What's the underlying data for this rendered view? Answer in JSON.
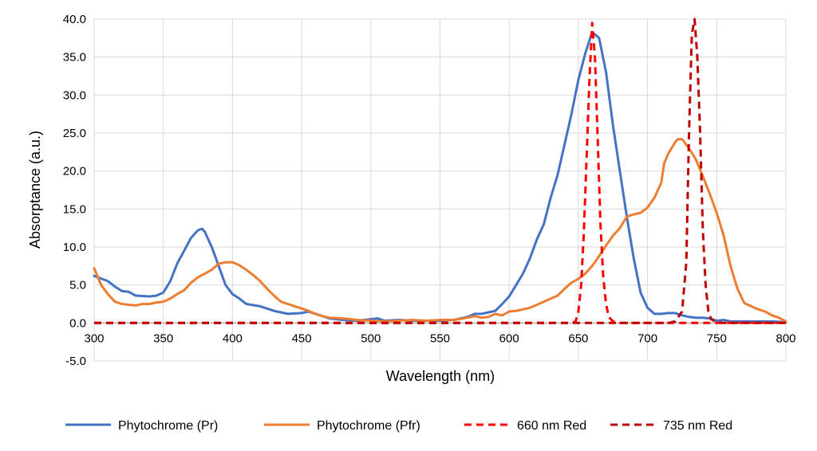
{
  "chart_data": {
    "type": "line",
    "xlabel": "Wavelength (nm)",
    "ylabel": "Absorptance (a.u.)",
    "xlim": [
      300,
      800
    ],
    "ylim": [
      -5,
      40
    ],
    "x_ticks": [
      "300",
      "350",
      "400",
      "450",
      "500",
      "550",
      "600",
      "650",
      "700",
      "750",
      "800"
    ],
    "y_ticks": [
      "-5.0",
      "0.0",
      "5.0",
      "10.0",
      "15.0",
      "20.0",
      "25.0",
      "30.0",
      "35.0",
      "40.0"
    ],
    "grid": true,
    "legend_position": "bottom",
    "series": [
      {
        "name": "Phytochrome (Pr)",
        "color": "#4472C4",
        "style": "solid",
        "points": [
          [
            300,
            6.2
          ],
          [
            310,
            5.5
          ],
          [
            315,
            4.8
          ],
          [
            320,
            4.2
          ],
          [
            325,
            4.1
          ],
          [
            330,
            3.6
          ],
          [
            340,
            3.5
          ],
          [
            345,
            3.6
          ],
          [
            350,
            4.0
          ],
          [
            355,
            5.5
          ],
          [
            360,
            7.8
          ],
          [
            365,
            9.5
          ],
          [
            370,
            11.2
          ],
          [
            375,
            12.2
          ],
          [
            378,
            12.4
          ],
          [
            380,
            12.0
          ],
          [
            385,
            10.0
          ],
          [
            390,
            7.5
          ],
          [
            395,
            5.0
          ],
          [
            400,
            3.8
          ],
          [
            405,
            3.2
          ],
          [
            410,
            2.5
          ],
          [
            420,
            2.2
          ],
          [
            430,
            1.6
          ],
          [
            440,
            1.2
          ],
          [
            450,
            1.3
          ],
          [
            455,
            1.5
          ],
          [
            460,
            1.2
          ],
          [
            470,
            0.6
          ],
          [
            480,
            0.4
          ],
          [
            490,
            0.3
          ],
          [
            500,
            0.5
          ],
          [
            505,
            0.6
          ],
          [
            510,
            0.3
          ],
          [
            520,
            0.4
          ],
          [
            530,
            0.3
          ],
          [
            540,
            0.3
          ],
          [
            550,
            0.3
          ],
          [
            560,
            0.4
          ],
          [
            570,
            0.8
          ],
          [
            575,
            1.2
          ],
          [
            580,
            1.2
          ],
          [
            590,
            1.6
          ],
          [
            595,
            2.5
          ],
          [
            600,
            3.5
          ],
          [
            605,
            5.0
          ],
          [
            610,
            6.5
          ],
          [
            615,
            8.5
          ],
          [
            620,
            11.0
          ],
          [
            625,
            13.0
          ],
          [
            630,
            16.5
          ],
          [
            635,
            19.5
          ],
          [
            640,
            23.5
          ],
          [
            645,
            27.5
          ],
          [
            650,
            32.0
          ],
          [
            655,
            35.5
          ],
          [
            660,
            38.3
          ],
          [
            665,
            37.5
          ],
          [
            670,
            33.0
          ],
          [
            675,
            26.0
          ],
          [
            680,
            20.0
          ],
          [
            685,
            14.0
          ],
          [
            690,
            8.5
          ],
          [
            695,
            4.0
          ],
          [
            700,
            2.0
          ],
          [
            705,
            1.2
          ],
          [
            710,
            1.2
          ],
          [
            715,
            1.3
          ],
          [
            720,
            1.3
          ],
          [
            725,
            1.0
          ],
          [
            730,
            0.8
          ],
          [
            735,
            0.7
          ],
          [
            740,
            0.7
          ],
          [
            745,
            0.6
          ],
          [
            750,
            0.3
          ],
          [
            755,
            0.4
          ],
          [
            760,
            0.2
          ],
          [
            770,
            0.2
          ],
          [
            780,
            0.2
          ],
          [
            790,
            0.2
          ],
          [
            800,
            0.1
          ]
        ]
      },
      {
        "name": "Phytochrome (Pfr)",
        "color": "#ED7D31",
        "style": "solid",
        "points": [
          [
            300,
            7.2
          ],
          [
            305,
            5.0
          ],
          [
            310,
            3.8
          ],
          [
            315,
            2.8
          ],
          [
            320,
            2.5
          ],
          [
            325,
            2.4
          ],
          [
            330,
            2.3
          ],
          [
            335,
            2.5
          ],
          [
            340,
            2.5
          ],
          [
            345,
            2.7
          ],
          [
            350,
            2.8
          ],
          [
            355,
            3.2
          ],
          [
            360,
            3.8
          ],
          [
            365,
            4.3
          ],
          [
            370,
            5.3
          ],
          [
            375,
            6.0
          ],
          [
            380,
            6.5
          ],
          [
            385,
            7.0
          ],
          [
            390,
            7.8
          ],
          [
            395,
            8.0
          ],
          [
            400,
            8.0
          ],
          [
            405,
            7.6
          ],
          [
            410,
            7.0
          ],
          [
            415,
            6.3
          ],
          [
            420,
            5.5
          ],
          [
            425,
            4.5
          ],
          [
            430,
            3.6
          ],
          [
            435,
            2.8
          ],
          [
            440,
            2.5
          ],
          [
            445,
            2.2
          ],
          [
            450,
            1.9
          ],
          [
            455,
            1.6
          ],
          [
            460,
            1.2
          ],
          [
            465,
            0.9
          ],
          [
            470,
            0.7
          ],
          [
            480,
            0.6
          ],
          [
            490,
            0.4
          ],
          [
            500,
            0.3
          ],
          [
            510,
            0.2
          ],
          [
            520,
            0.3
          ],
          [
            530,
            0.4
          ],
          [
            540,
            0.3
          ],
          [
            550,
            0.4
          ],
          [
            560,
            0.4
          ],
          [
            570,
            0.7
          ],
          [
            575,
            0.9
          ],
          [
            580,
            0.7
          ],
          [
            585,
            0.8
          ],
          [
            590,
            1.2
          ],
          [
            595,
            1.0
          ],
          [
            600,
            1.5
          ],
          [
            605,
            1.6
          ],
          [
            610,
            1.8
          ],
          [
            615,
            2.0
          ],
          [
            620,
            2.4
          ],
          [
            625,
            2.8
          ],
          [
            630,
            3.2
          ],
          [
            635,
            3.6
          ],
          [
            640,
            4.5
          ],
          [
            645,
            5.3
          ],
          [
            650,
            5.8
          ],
          [
            655,
            6.5
          ],
          [
            660,
            7.5
          ],
          [
            665,
            8.8
          ],
          [
            670,
            10.2
          ],
          [
            675,
            11.5
          ],
          [
            680,
            12.5
          ],
          [
            685,
            14.0
          ],
          [
            690,
            14.3
          ],
          [
            695,
            14.5
          ],
          [
            700,
            15.2
          ],
          [
            705,
            16.5
          ],
          [
            710,
            18.5
          ],
          [
            712,
            21.0
          ],
          [
            715,
            22.3
          ],
          [
            720,
            23.8
          ],
          [
            722,
            24.2
          ],
          [
            725,
            24.2
          ],
          [
            730,
            23.0
          ],
          [
            735,
            21.5
          ],
          [
            740,
            19.3
          ],
          [
            745,
            17.0
          ],
          [
            750,
            14.5
          ],
          [
            755,
            11.5
          ],
          [
            760,
            7.5
          ],
          [
            765,
            4.5
          ],
          [
            770,
            2.6
          ],
          [
            775,
            2.2
          ],
          [
            780,
            1.8
          ],
          [
            785,
            1.5
          ],
          [
            790,
            1.0
          ],
          [
            795,
            0.7
          ],
          [
            800,
            0.2
          ]
        ]
      },
      {
        "name": "660 nm Red",
        "color": "#FF0000",
        "style": "dashed",
        "points": [
          [
            300,
            0
          ],
          [
            645,
            0
          ],
          [
            648,
            0.2
          ],
          [
            650,
            1.5
          ],
          [
            652,
            5
          ],
          [
            654,
            12
          ],
          [
            656,
            22
          ],
          [
            658,
            32
          ],
          [
            660,
            39.5
          ],
          [
            662,
            35
          ],
          [
            664,
            24
          ],
          [
            666,
            13
          ],
          [
            668,
            6
          ],
          [
            670,
            2.5
          ],
          [
            672,
            0.8
          ],
          [
            675,
            0.2
          ],
          [
            680,
            0
          ],
          [
            800,
            0
          ]
        ]
      },
      {
        "name": "735 nm Red",
        "color": "#C00000",
        "style": "dashed",
        "points": [
          [
            300,
            0
          ],
          [
            715,
            0
          ],
          [
            720,
            0.2
          ],
          [
            725,
            1.5
          ],
          [
            728,
            8
          ],
          [
            730,
            25
          ],
          [
            732,
            38
          ],
          [
            734,
            40
          ],
          [
            736,
            35
          ],
          [
            738,
            25
          ],
          [
            740,
            12
          ],
          [
            742,
            5
          ],
          [
            744,
            1.5
          ],
          [
            746,
            0.5
          ],
          [
            750,
            0.1
          ],
          [
            755,
            0
          ],
          [
            800,
            0
          ]
        ]
      }
    ]
  }
}
